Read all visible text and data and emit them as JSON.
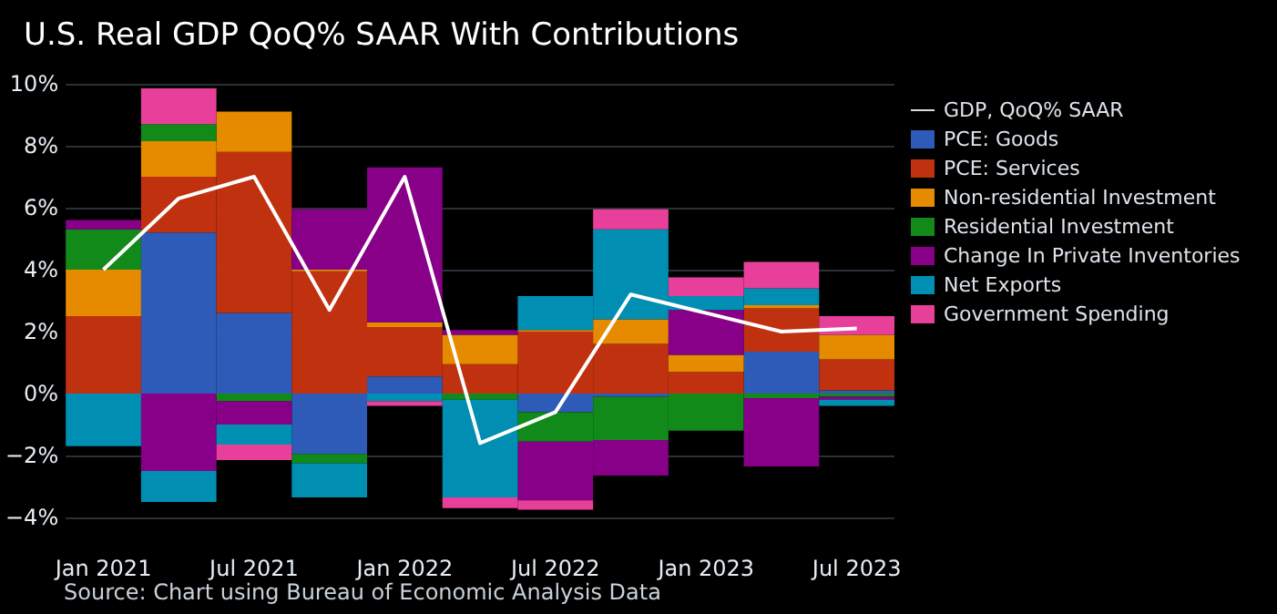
{
  "chart_data": {
    "type": "bar",
    "title": "U.S. Real GDP QoQ% SAAR With Contributions",
    "stacked": true,
    "categories": [
      "Jan 2021",
      null,
      "Jul 2021",
      null,
      "Jan 2022",
      null,
      "Jul 2022",
      null,
      "Jan 2023",
      null,
      "Jul 2023"
    ],
    "series": [
      {
        "name": "GDP, QoQ% SAAR",
        "type": "line",
        "color": "#ffffff",
        "values": [
          4.0,
          6.3,
          7.0,
          2.7,
          7.0,
          -1.6,
          -0.6,
          3.2,
          2.6,
          2.0,
          2.1
        ]
      },
      {
        "name": "PCE: Goods",
        "color": "#2e5bb8",
        "values": [
          0,
          5.2,
          2.6,
          -1.95,
          0.55,
          0,
          -0.6,
          -0.1,
          0,
          1.35,
          0.1
        ]
      },
      {
        "name": "PCE: Services",
        "color": "#c0320f",
        "values": [
          2.5,
          1.8,
          5.2,
          3.95,
          1.6,
          0.95,
          2.0,
          1.6,
          0.7,
          1.4,
          1.0
        ]
      },
      {
        "name": "Non-residential Investment",
        "color": "#e68a00",
        "values": [
          1.5,
          1.15,
          1.3,
          0.05,
          0.15,
          0.95,
          0.05,
          0.8,
          0.55,
          0.1,
          0.8
        ]
      },
      {
        "name": "Residential Investment",
        "color": "#118a1a",
        "values": [
          1.3,
          0.55,
          -0.25,
          -0.3,
          0,
          -0.2,
          -0.95,
          -1.4,
          -1.2,
          -0.15,
          -0.1
        ]
      },
      {
        "name": "Change In Private Inventories",
        "color": "#880088",
        "values": [
          0.3,
          -2.5,
          -0.75,
          1.95,
          5.0,
          0.15,
          -1.9,
          -1.15,
          1.45,
          -2.2,
          -0.1
        ]
      },
      {
        "name": "Net Exports",
        "color": "#008fb3",
        "values": [
          -1.7,
          -1.0,
          -0.65,
          -1.1,
          -0.25,
          -3.15,
          1.1,
          2.9,
          0.45,
          0.55,
          -0.2
        ]
      },
      {
        "name": "Government Spending",
        "color": "#e8409a",
        "values": [
          0,
          1.15,
          -0.5,
          0,
          -0.15,
          -0.35,
          -0.3,
          0.65,
          0.6,
          0.85,
          0.6
        ]
      }
    ],
    "ylim": [
      -4,
      10
    ],
    "yticks": [
      {
        "value": -4,
        "label": "−4%"
      },
      {
        "value": -2,
        "label": "−2%"
      },
      {
        "value": 0,
        "label": "0%"
      },
      {
        "value": 2,
        "label": "2%"
      },
      {
        "value": 4,
        "label": "4%"
      },
      {
        "value": 6,
        "label": "6%"
      },
      {
        "value": 8,
        "label": "8%"
      },
      {
        "value": 10,
        "label": "10%"
      }
    ],
    "grid": "y",
    "legend": "right",
    "marker": "none",
    "annotations": [
      "Source: Chart using Bureau of Economic Analysis Data"
    ]
  }
}
